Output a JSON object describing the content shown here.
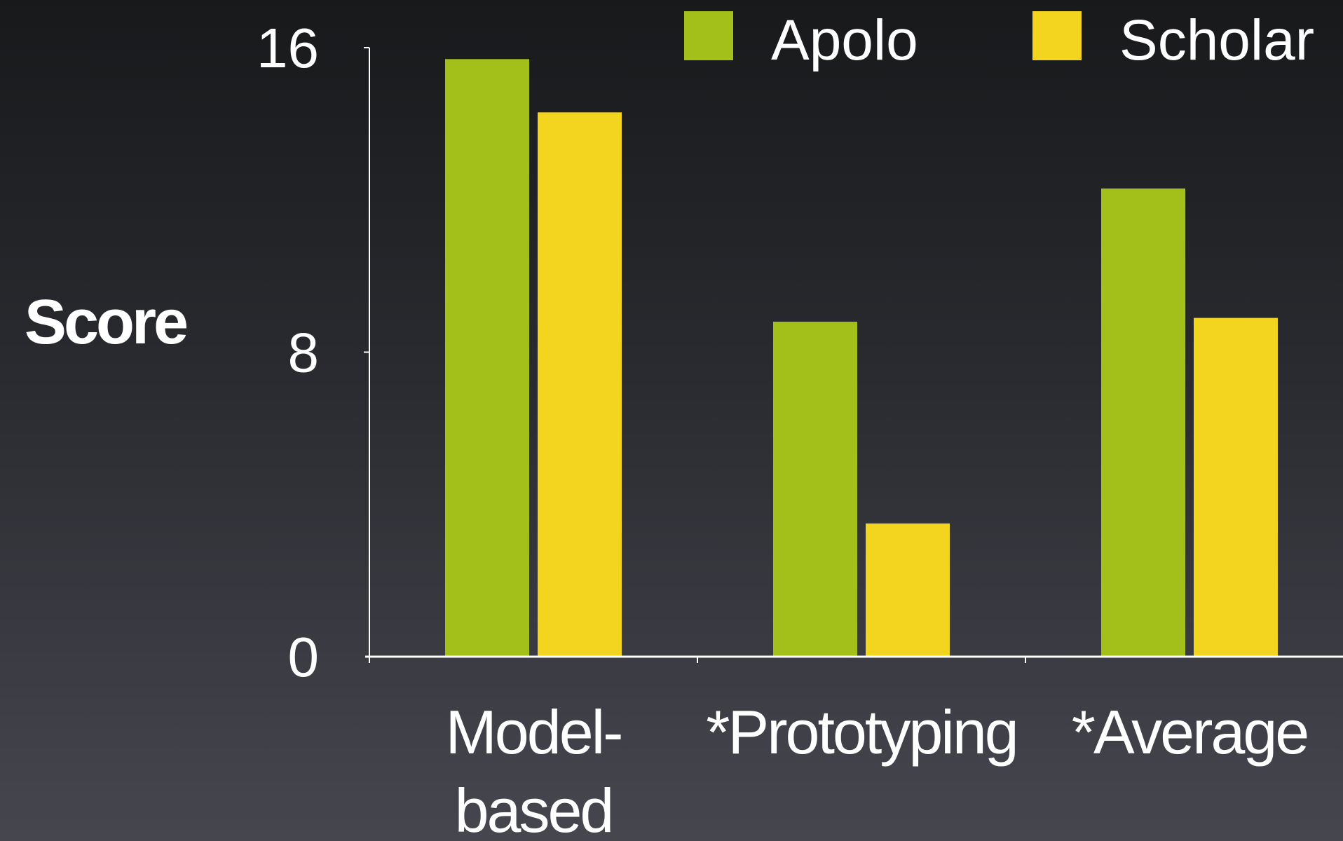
{
  "colors": {
    "apolo": "#a3bf19",
    "scholar": "#f3d51f",
    "axis": "#ffffff",
    "text": "#ffffff"
  },
  "chart_data": {
    "type": "bar",
    "title": "",
    "xlabel": "",
    "ylabel": "Score",
    "ylim": [
      0,
      16
    ],
    "yticks": [
      "0",
      "8",
      "16"
    ],
    "categories": [
      [
        "Model-",
        "based"
      ],
      [
        "*Prototyping"
      ],
      [
        "*Average"
      ]
    ],
    "series": [
      {
        "name": "Apolo",
        "values": [
          15.7,
          8.8,
          12.3
        ]
      },
      {
        "name": "Scholar",
        "values": [
          14.3,
          3.5,
          8.9
        ]
      }
    ],
    "legend": "top-right",
    "grid": false
  }
}
